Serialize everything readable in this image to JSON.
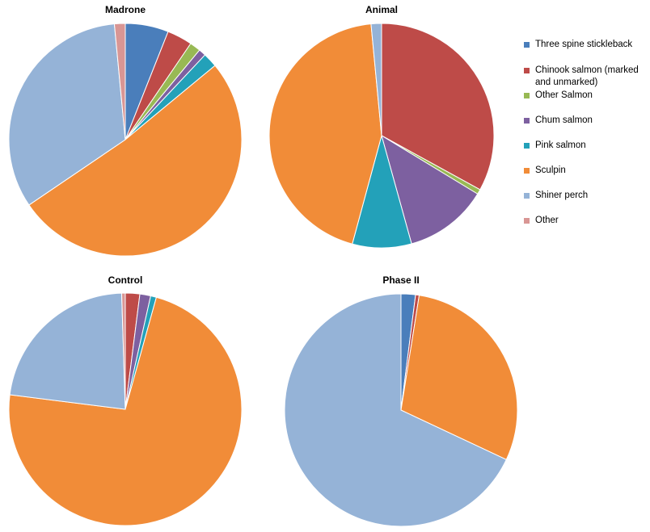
{
  "chart_data": {
    "type": "pie",
    "legend": {
      "position": "right",
      "entries": [
        {
          "name": "Three spine stickleback",
          "color": "#4a7ebb"
        },
        {
          "name": "Chinook salmon (marked and unmarked)",
          "color": "#be4b48"
        },
        {
          "name": "Other Salmon",
          "color": "#98b954"
        },
        {
          "name": "Chum salmon",
          "color": "#7d60a0"
        },
        {
          "name": "Pink salmon",
          "color": "#23a1b9"
        },
        {
          "name": "Sculpin",
          "color": "#f18c38"
        },
        {
          "name": "Shiner perch",
          "color": "#95b3d7"
        },
        {
          "name": "Other",
          "color": "#d99694"
        }
      ]
    },
    "pies": [
      {
        "title": "Madrone",
        "values": [
          6.0,
          3.5,
          1.5,
          1.0,
          2.0,
          51.5,
          33.0,
          1.5
        ]
      },
      {
        "title": "Animal",
        "values": [
          0.0,
          33.0,
          0.7,
          12.0,
          8.5,
          44.3,
          1.5,
          0.0
        ]
      },
      {
        "title": "Control",
        "values": [
          0.0,
          2.0,
          0.0,
          1.5,
          0.8,
          72.7,
          22.5,
          0.5
        ]
      },
      {
        "title": "Phase II",
        "values": [
          2.0,
          0.5,
          0.0,
          0.0,
          0.0,
          29.5,
          68.0,
          0.0
        ]
      }
    ]
  }
}
